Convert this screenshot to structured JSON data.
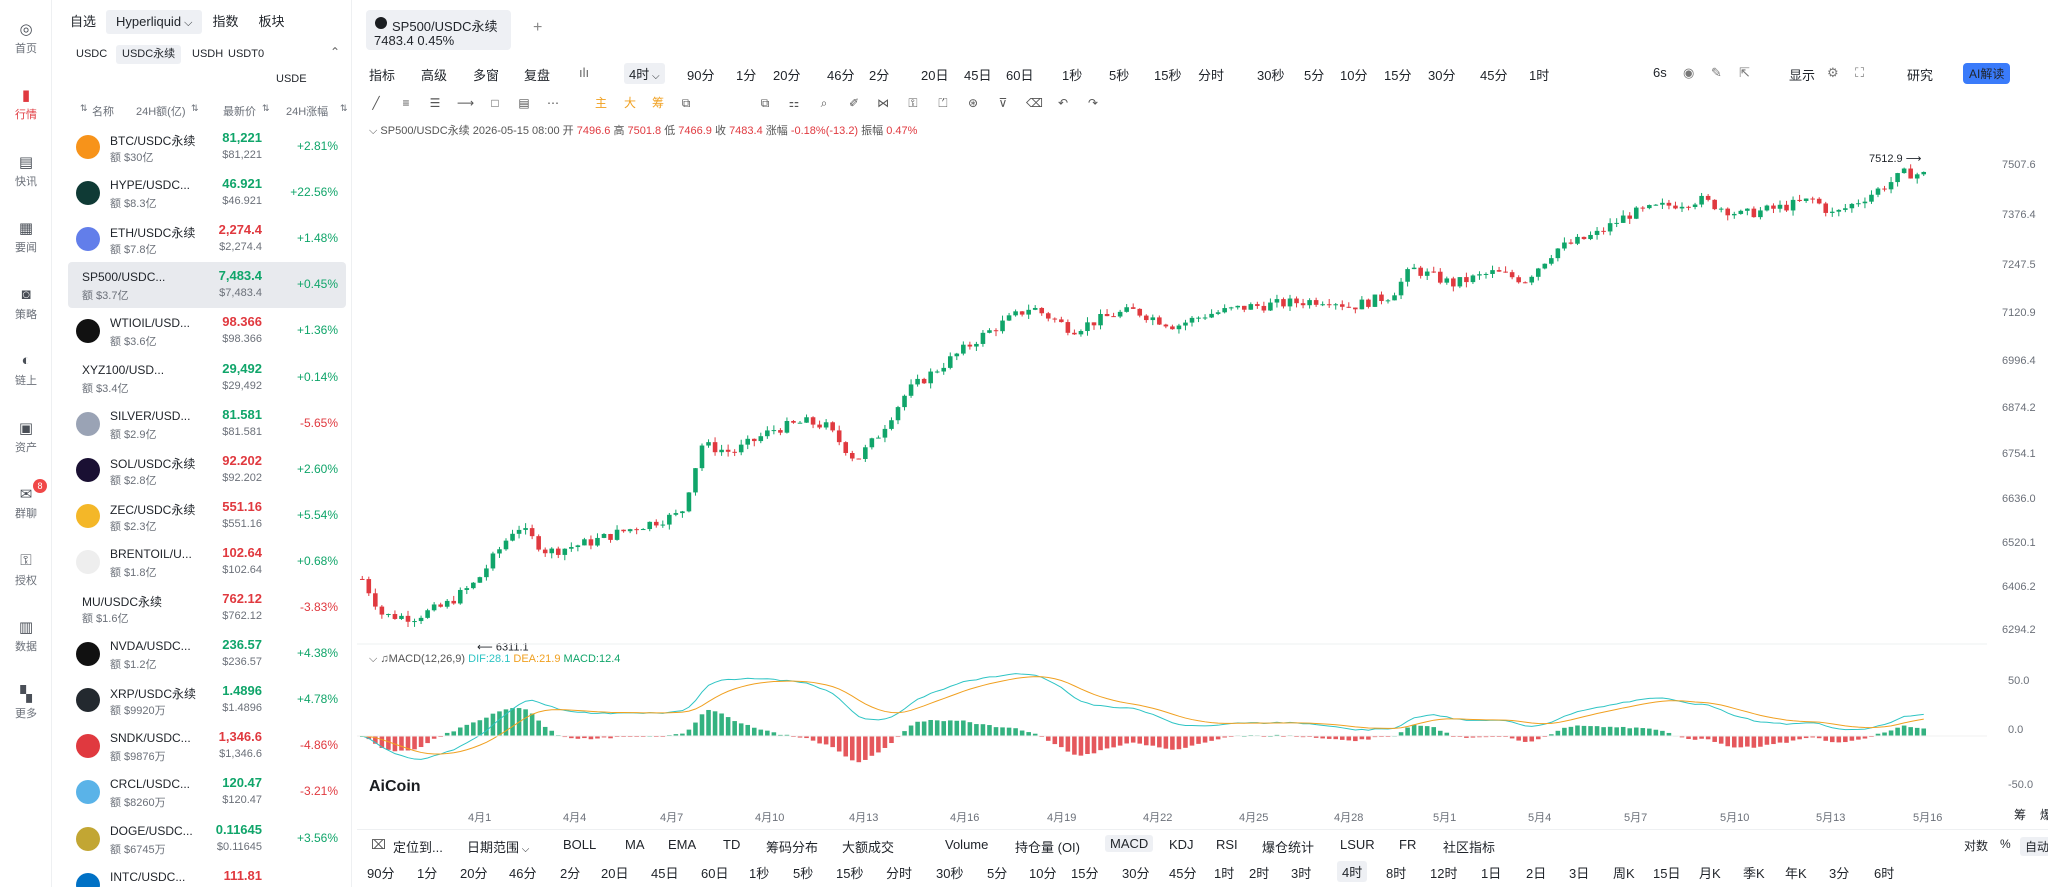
{
  "nav": [
    {
      "label": "首页",
      "icon": "home-logo-icon"
    },
    {
      "label": "行情",
      "icon": "bar-chart-icon",
      "active": true
    },
    {
      "label": "快讯",
      "icon": "news-icon"
    },
    {
      "label": "要闻",
      "icon": "document-icon"
    },
    {
      "label": "策略",
      "icon": "robot-icon"
    },
    {
      "label": "链上",
      "icon": "chain-icon"
    },
    {
      "label": "资产",
      "icon": "wallet-icon"
    },
    {
      "label": "群聊",
      "icon": "chat-icon",
      "badge": "8"
    },
    {
      "label": "授权",
      "icon": "key-icon"
    },
    {
      "label": "数据",
      "icon": "data-icon"
    },
    {
      "label": "更多",
      "icon": "grid-icon"
    }
  ],
  "market": {
    "tabs": [
      "自选",
      "Hyperliquid",
      "指数",
      "板块"
    ],
    "subtabs": [
      "USDC",
      "USDC永续",
      "USDH",
      "USDT0",
      "USDE"
    ],
    "headers": {
      "name": "名称",
      "vol": "24H额(亿)",
      "price": "最新价",
      "change": "24H涨幅"
    },
    "rows": [
      {
        "sym": "BTC/USDC永续",
        "vol": "额 $30亿",
        "price": "81,221",
        "sub": "$81,221",
        "chg": "+2.81%",
        "pc": "up",
        "cc": "up",
        "icon": "#f7931a"
      },
      {
        "sym": "HYPE/USDC...",
        "vol": "额 $8.3亿",
        "price": "46.921",
        "sub": "$46.921",
        "chg": "+22.56%",
        "pc": "up",
        "cc": "up",
        "icon": "#0f3a35"
      },
      {
        "sym": "ETH/USDC永续",
        "vol": "额 $7.8亿",
        "price": "2,274.4",
        "sub": "$2,274.4",
        "chg": "+1.48%",
        "pc": "dn",
        "cc": "up",
        "icon": "#627eea"
      },
      {
        "sym": "SP500/USDC...",
        "vol": "额 $3.7亿",
        "price": "7,483.4",
        "sub": "$7,483.4",
        "chg": "+0.45%",
        "pc": "up",
        "cc": "up",
        "icon": "",
        "sel": true
      },
      {
        "sym": "WTIOIL/USD...",
        "vol": "额 $3.6亿",
        "price": "98.366",
        "sub": "$98.366",
        "chg": "+1.36%",
        "pc": "dn",
        "cc": "up",
        "icon": "#111111"
      },
      {
        "sym": "XYZ100/USD...",
        "vol": "额 $3.4亿",
        "price": "29,492",
        "sub": "$29,492",
        "chg": "+0.14%",
        "pc": "up",
        "cc": "up",
        "icon": ""
      },
      {
        "sym": "SILVER/USD...",
        "vol": "额 $2.9亿",
        "price": "81.581",
        "sub": "$81.581",
        "chg": "-5.65%",
        "pc": "up",
        "cc": "dn",
        "icon": "#9aa3b5"
      },
      {
        "sym": "SOL/USDC永续",
        "vol": "额 $2.8亿",
        "price": "92.202",
        "sub": "$92.202",
        "chg": "+2.60%",
        "pc": "dn",
        "cc": "up",
        "icon": "#1a1033"
      },
      {
        "sym": "ZEC/USDC永续",
        "vol": "额 $2.3亿",
        "price": "551.16",
        "sub": "$551.16",
        "chg": "+5.54%",
        "pc": "dn",
        "cc": "up",
        "icon": "#f4b728"
      },
      {
        "sym": "BRENTOIL/U...",
        "vol": "额 $1.8亿",
        "price": "102.64",
        "sub": "$102.64",
        "chg": "+0.68%",
        "pc": "dn",
        "cc": "up",
        "icon": "#eeeeee"
      },
      {
        "sym": "MU/USDC永续",
        "vol": "额 $1.6亿",
        "price": "762.12",
        "sub": "$762.12",
        "chg": "-3.83%",
        "pc": "dn",
        "cc": "dn",
        "icon": ""
      },
      {
        "sym": "NVDA/USDC...",
        "vol": "额 $1.2亿",
        "price": "236.57",
        "sub": "$236.57",
        "chg": "+4.38%",
        "pc": "up",
        "cc": "up",
        "icon": "#111111"
      },
      {
        "sym": "XRP/USDC永续",
        "vol": "额 $9920万",
        "price": "1.4896",
        "sub": "$1.4896",
        "chg": "+4.78%",
        "pc": "up",
        "cc": "up",
        "icon": "#23292f"
      },
      {
        "sym": "SNDK/USDC...",
        "vol": "额 $9876万",
        "price": "1,346.6",
        "sub": "$1,346.6",
        "chg": "-4.86%",
        "pc": "dn",
        "cc": "dn",
        "icon": "#e0393f"
      },
      {
        "sym": "CRCL/USDC...",
        "vol": "额 $8260万",
        "price": "120.47",
        "sub": "$120.47",
        "chg": "-3.21%",
        "pc": "up",
        "cc": "dn",
        "icon": "#5ab3e8"
      },
      {
        "sym": "DOGE/USDC...",
        "vol": "额 $6745万",
        "price": "0.11645",
        "sub": "$0.11645",
        "chg": "+3.56%",
        "pc": "up",
        "cc": "up",
        "icon": "#c2a633"
      },
      {
        "sym": "INTC/USDC...",
        "vol": "",
        "price": "111.81",
        "sub": "",
        "chg": "",
        "pc": "dn",
        "cc": "up",
        "icon": "#0071c5"
      }
    ]
  },
  "tab": {
    "title": "SP500/USDC永续",
    "price_change": "7483.4  0.45%",
    "add": "+"
  },
  "toolbar1": {
    "indicator": "指标",
    "advanced": "高级",
    "multi": "多窗",
    "replay": "复盘",
    "current": "4时",
    "periods": [
      "90分",
      "1分",
      "20分",
      "46分",
      "2分",
      "20日",
      "45日",
      "60日",
      "1秒",
      "5秒",
      "15秒",
      "分时",
      "30秒",
      "5分",
      "10分",
      "15分",
      "30分",
      "45分",
      "1时"
    ],
    "right": {
      "speed": "6s",
      "show": "显示",
      "research": "研究",
      "ai": "AI解读"
    }
  },
  "info": {
    "sym": "SP500/USDC永续",
    "date": "2026-05-15 08:00",
    "open_l": "开",
    "open": "7496.6",
    "high_l": "高",
    "high": "7501.8",
    "low_l": "低",
    "low": "7466.9",
    "close_l": "收",
    "close": "7483.4",
    "chg_l": "涨幅",
    "chg": "-0.18%(-13.2)",
    "amp_l": "振幅",
    "amp": "0.47%"
  },
  "chart_data": {
    "type": "candlestick",
    "interval": "4时",
    "y_ticks": [
      "7507.6",
      "7376.4",
      "7247.5",
      "7120.9",
      "6996.4",
      "6874.2",
      "6754.1",
      "6636.0",
      "6520.1",
      "6406.2",
      "6294.2"
    ],
    "x_ticks": [
      "4月1",
      "4月4",
      "4月7",
      "4月10",
      "4月13",
      "4月16",
      "4月19",
      "4月22",
      "4月25",
      "4月28",
      "5月1",
      "5月4",
      "5月7",
      "5月10",
      "5月13",
      "5月16"
    ],
    "annotations": {
      "high": "7512.9",
      "low": "6311.1"
    },
    "macd": {
      "label": "MACD(12,26,9)",
      "dif": "DIF:28.1",
      "dea": "DEA:21.9",
      "macd": "MACD:12.4",
      "y_ticks": [
        "50.0",
        "0.0",
        "-50.0"
      ]
    }
  },
  "watermark": "AiCoin",
  "bottom1": {
    "locate": "定位到...",
    "range": "日期范围",
    "indicators": [
      "BOLL",
      "MA",
      "EMA",
      "TD",
      "筹码分布",
      "大额成交",
      "Volume",
      "持仓量 (OI)",
      "MACD",
      "KDJ",
      "RSI",
      "爆仓统计",
      "LSUR",
      "FR",
      "社区指标"
    ],
    "right": [
      "对数",
      "%",
      "自动"
    ]
  },
  "bottom2": [
    "90分",
    "1分",
    "20分",
    "46分",
    "2分",
    "20日",
    "45日",
    "60日",
    "1秒",
    "5秒",
    "15秒",
    "分时",
    "30秒",
    "5分",
    "10分",
    "15分",
    "30分",
    "45分",
    "1时",
    "2时",
    "3时",
    "4时",
    "8时",
    "12时",
    "1日",
    "2日",
    "3日",
    "周K",
    "15日",
    "月K",
    "季K",
    "年K",
    "3分",
    "6时"
  ],
  "corner": [
    "筹",
    "爆"
  ]
}
